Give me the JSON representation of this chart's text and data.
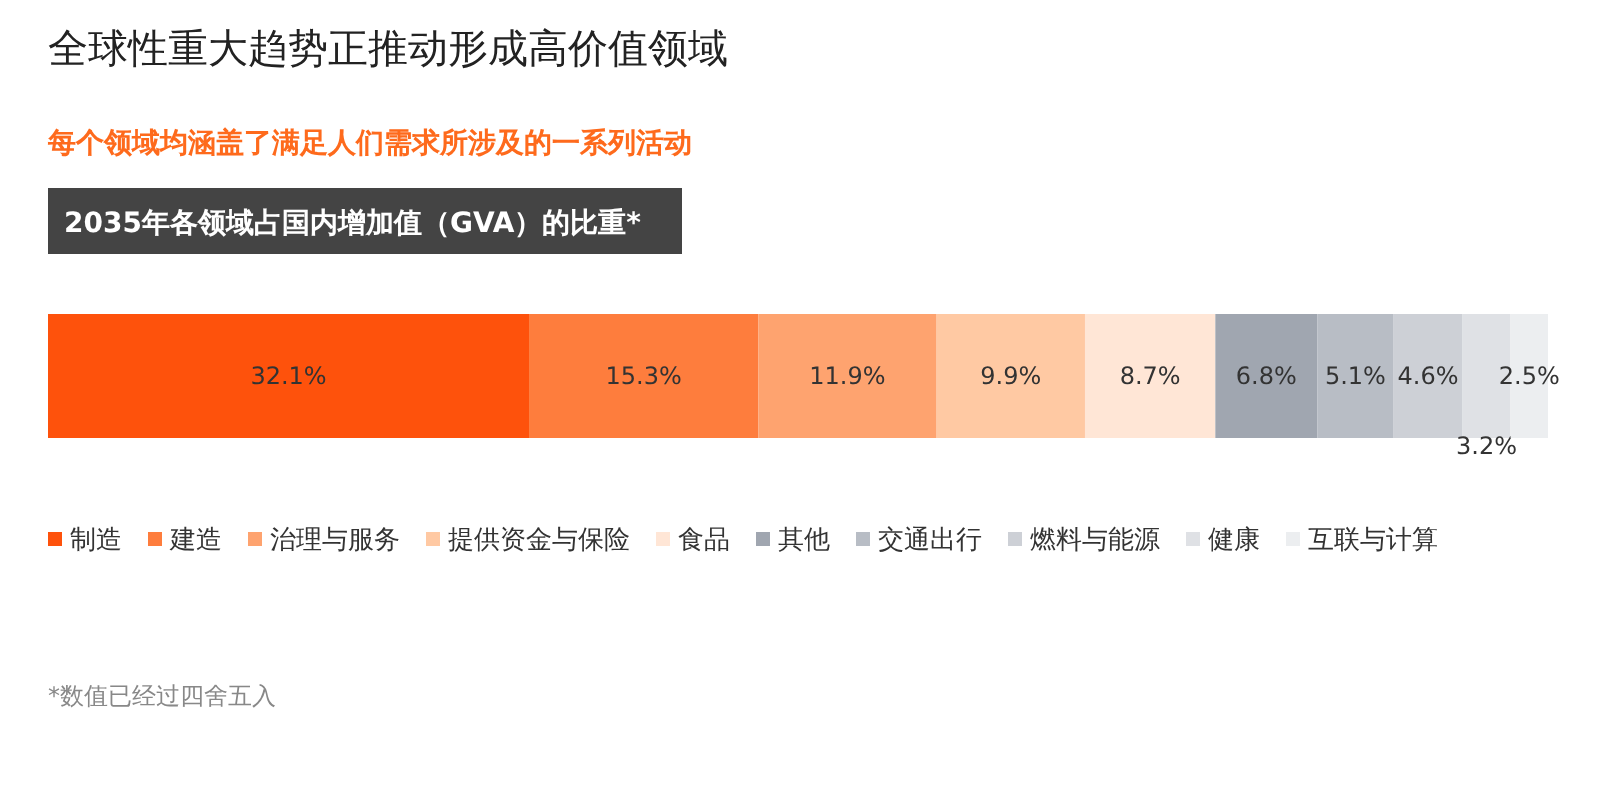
{
  "chart_data": {
    "type": "bar",
    "orientation": "horizontal",
    "stacked": true,
    "title": "全球性重大趋势正推动形成高价值领域",
    "subtitle": "每个领域均涵盖了满足人们需求所涉及的一系列活动",
    "annotations": [
      "2035年各领域占国内增加值（GVA）的比重*",
      "*数值已经过四舍五入"
    ],
    "categories": [
      null
    ],
    "legend": "bottom",
    "series": [
      {
        "name": "制造",
        "color": "#fe520c",
        "values": [
          32.1
        ],
        "value_labels": [
          "32.1%"
        ]
      },
      {
        "name": "建造",
        "color": "#fe7d3d",
        "values": [
          15.3
        ],
        "value_labels": [
          "15.3%"
        ]
      },
      {
        "name": "治理与服务",
        "color": "#fea36f",
        "values": [
          11.9
        ],
        "value_labels": [
          "11.9%"
        ]
      },
      {
        "name": "提供资金与保险",
        "color": "#ffc9a3",
        "values": [
          9.9
        ],
        "value_labels": [
          "9.9%"
        ]
      },
      {
        "name": "食品",
        "color": "#ffe6d6",
        "values": [
          8.7
        ],
        "value_labels": [
          "8.7%"
        ]
      },
      {
        "name": "其他",
        "color": "#a0a6b0",
        "values": [
          6.8
        ],
        "value_labels": [
          "6.8%"
        ]
      },
      {
        "name": "交通出行",
        "color": "#b8bdc5",
        "values": [
          5.1
        ],
        "value_labels": [
          "5.1%"
        ]
      },
      {
        "name": "燃料与能源",
        "color": "#cdd0d6",
        "values": [
          4.6
        ],
        "value_labels": [
          "4.6%"
        ]
      },
      {
        "name": "健康",
        "color": "#dfe1e5",
        "values": [
          3.2
        ],
        "value_labels": [
          "3.2%"
        ]
      },
      {
        "name": "互联与计算",
        "color": "#eceef0",
        "values": [
          2.5
        ],
        "value_labels": [
          "2.5%"
        ]
      }
    ]
  }
}
